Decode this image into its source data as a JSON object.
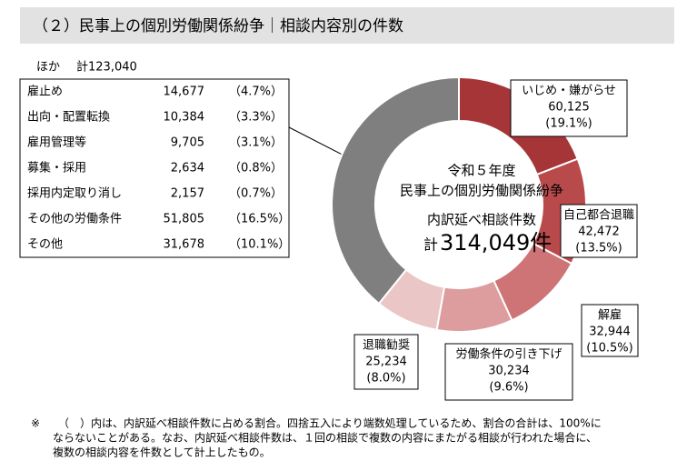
{
  "header": {
    "title": "（２）民事上の個別労働関係紛争｜相談内容別の件数"
  },
  "chart_data": {
    "type": "donut",
    "center_text": [
      "令和５年度",
      "民事上の個別労働関係紛争",
      "内訳延べ相談件数"
    ],
    "total_prefix": "計",
    "total": "314,049件",
    "categories": [
      "いじめ・嫌がらせ",
      "自己都合退職",
      "解雇",
      "労働条件の引き下げ",
      "退職勧奨",
      "ほか"
    ],
    "values": [
      60125,
      42472,
      32944,
      30234,
      25234,
      123040
    ],
    "value_labels": [
      "60,125",
      "42,472",
      "32,944",
      "30,234",
      "25,234",
      "計123,040"
    ],
    "percent_labels": [
      "(19.1%)",
      "(13.5%)",
      "(10.5%)",
      "(9.6%)",
      "(8.0%)",
      null
    ],
    "colors": [
      "#a63538",
      "#b94a4c",
      "#cf7476",
      "#dd9c9d",
      "#ebc6c6",
      "#7f7f7f"
    ]
  },
  "table": {
    "rows": [
      [
        "雇止め",
        "14,677",
        "（4.7%）"
      ],
      [
        "出向・配置転換",
        "10,384",
        "（3.3%）"
      ],
      [
        "雇用管理等",
        "9,705",
        "（3.1%）"
      ],
      [
        "募集・採用",
        "2,634",
        "（0.8%）"
      ],
      [
        "採用内定取り消し",
        "2,157",
        "（0.7%）"
      ],
      [
        "その他の労働条件",
        "51,805",
        "（16.5%）"
      ],
      [
        "その他",
        "31,678",
        "（10.1%）"
      ]
    ]
  },
  "footnote": [
    "※",
    "（　）内は、内訳延べ相談件数に占める割合。四捨五入により端数処理しているため、割合の合計は、100%に",
    "ならないことがある。なお、内訳延べ相談件数は、１回の相談で複数の内容にまたがる相談が行われた場合に、",
    "複数の相談内容を件数として計上したもの。"
  ]
}
